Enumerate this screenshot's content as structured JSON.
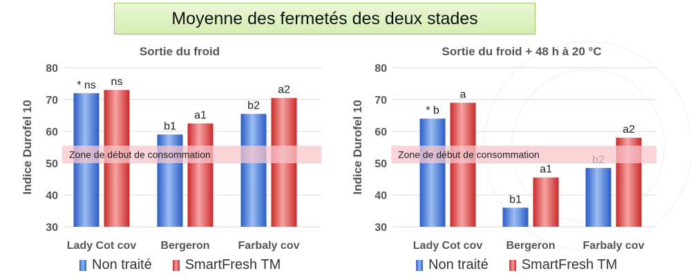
{
  "title": "Moyenne des fermetés des deux stades",
  "colors": {
    "series1": "#4a7fe0",
    "series2": "#e04848",
    "zone": "#f7c6cc"
  },
  "chart_data": [
    {
      "type": "bar",
      "title": "Sortie du froid",
      "ylabel": "Indice Durofel 10",
      "ylim": [
        30,
        80
      ],
      "yticks": [
        30,
        40,
        50,
        60,
        70,
        80
      ],
      "categories": [
        "Lady Cot cov",
        "Bergeron",
        "Farbaly cov"
      ],
      "series": [
        {
          "name": "Non traité",
          "values": [
            72,
            59,
            65.5
          ],
          "labels": [
            "* ns",
            "b1",
            "b2"
          ]
        },
        {
          "name": "SmartFresh TM",
          "values": [
            73,
            62.5,
            70.5
          ],
          "labels": [
            "ns",
            "a1",
            "a2"
          ]
        }
      ],
      "zone": {
        "label": "Zone de début de consommation",
        "range": [
          50,
          55.5
        ]
      }
    },
    {
      "type": "bar",
      "title": "Sortie du froid + 48 h à 20 °C",
      "ylabel": "Indice Durofel 10",
      "ylim": [
        30,
        80
      ],
      "yticks": [
        30,
        40,
        50,
        60,
        70,
        80
      ],
      "categories": [
        "Lady Cot cov",
        "Bergeron",
        "Farbaly cov"
      ],
      "series": [
        {
          "name": "Non traité",
          "values": [
            64,
            36,
            48.5
          ],
          "labels": [
            "* b",
            "b1",
            "b2"
          ]
        },
        {
          "name": "SmartFresh TM",
          "values": [
            69,
            45.5,
            58
          ],
          "labels": [
            "a",
            "a1",
            "a2"
          ]
        }
      ],
      "zone": {
        "label": "Zone de début de consommation",
        "range": [
          50,
          55.5
        ]
      }
    }
  ]
}
